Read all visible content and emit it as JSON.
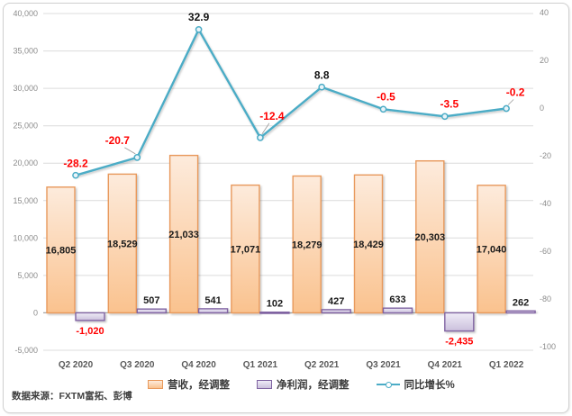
{
  "source_note": "数据来源：FXTM富拓、彭博",
  "colors": {
    "revenue_fill_top": "#FDEBDC",
    "revenue_fill_bottom": "#FAC28E",
    "revenue_border": "#E8995C",
    "profit_fill_top": "#EFECF7",
    "profit_fill_bottom": "#CBC0DC",
    "profit_border": "#8064A2",
    "line": "#4BACC6",
    "negative_label": "#FF0000",
    "grid": "#DCDCDC",
    "axis_line": "#A6A6A6",
    "tick_text": "#8C8C8C",
    "category_text": "#595959"
  },
  "chart_data": {
    "type": "bar",
    "subtype": "combo-bar-line",
    "categories": [
      "Q2 2020",
      "Q3 2020",
      "Q4 2020",
      "Q1 2021",
      "Q2 2021",
      "Q3 2021",
      "Q4 2021",
      "Q1 2022"
    ],
    "series": [
      {
        "name": "营收，经调整",
        "type": "bar",
        "axis": "left",
        "values": [
          16805,
          18529,
          21033,
          17071,
          18279,
          18429,
          20303,
          17040
        ]
      },
      {
        "name": "净利润，经调整",
        "type": "bar",
        "axis": "left",
        "values": [
          -1020,
          507,
          541,
          102,
          427,
          633,
          -2435,
          262
        ]
      },
      {
        "name": "同比增长%",
        "type": "line",
        "axis": "right",
        "values": [
          -28.2,
          -20.7,
          32.9,
          -12.4,
          8.8,
          -0.5,
          -3.5,
          -0.2
        ]
      }
    ],
    "title": "",
    "xlabel": "",
    "ylabel": "",
    "left_axis": {
      "min": -5000,
      "max": 40000,
      "step": 5000
    },
    "right_axis": {
      "min": -100,
      "max": 40,
      "step": 20
    },
    "grid": true,
    "legend_position": "bottom"
  }
}
